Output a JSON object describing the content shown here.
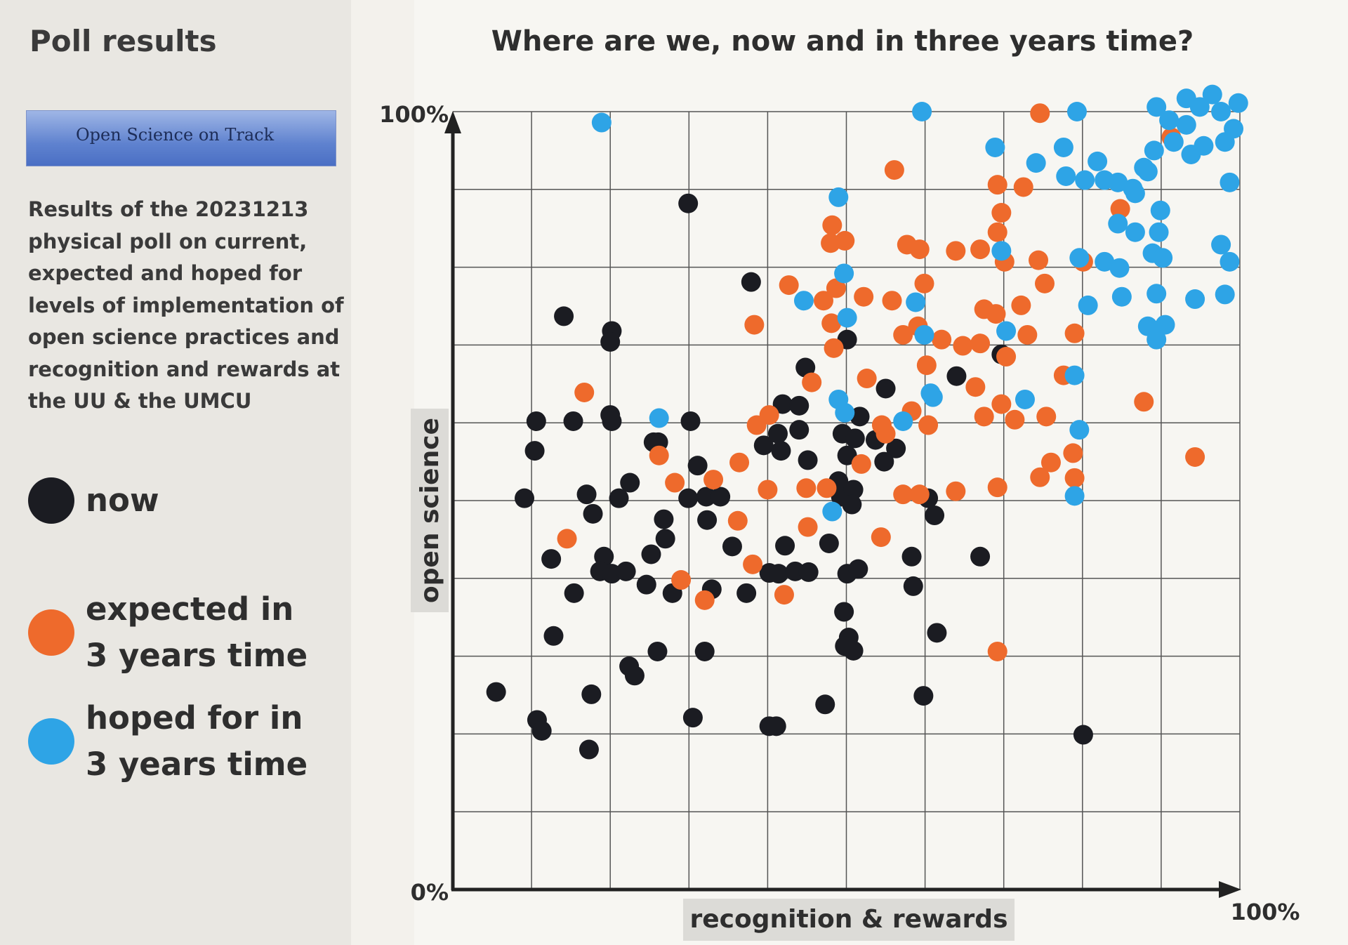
{
  "header": {
    "title": "Poll results",
    "logo_text": "Open Science on Track",
    "description": "Results of the 20231213 physical poll on current, expected and hoped for levels of implementation of open science practices and recognition and rewards at the UU & the UMCU"
  },
  "chart_data": {
    "type": "scatter",
    "title": "Where are we, now and in three years time?",
    "x_label": "recognition & rewards",
    "y_label": "open science",
    "xlim": [
      0,
      100
    ],
    "ylim": [
      0,
      100
    ],
    "xticks": [
      {
        "value": 100,
        "label": "100%"
      }
    ],
    "yticks": [
      {
        "value": 0,
        "label": "0%"
      },
      {
        "value": 100,
        "label": "100%"
      }
    ],
    "xgrid": [
      10,
      20,
      30,
      40,
      50,
      60,
      70,
      80,
      90,
      100
    ],
    "ygrid": [
      10,
      20,
      30,
      40,
      50,
      60,
      70,
      80,
      90,
      100
    ],
    "series": [
      {
        "name": "now",
        "color": "#1b1c22",
        "x": [
          5.5,
          10.6,
          10.4,
          9.1,
          12.5,
          15.4,
          12.8,
          10.7,
          11.3,
          17.6,
          17.3,
          14.1,
          20.2,
          20.0,
          15.3,
          20.0,
          20.2,
          17.0,
          17.8,
          21.1,
          22.5,
          19.2,
          18.7,
          20.2,
          22.0,
          24.6,
          25.2,
          26.8,
          27.0,
          26.1,
          25.5,
          27.9,
          30.2,
          29.9,
          31.1,
          32.2,
          34.0,
          32.3,
          32.9,
          35.5,
          37.3,
          32.0,
          26.0,
          22.4,
          23.1,
          30.5,
          40.2,
          41.1,
          29.9,
          37.9,
          42.2,
          40.2,
          41.4,
          43.5,
          45.2,
          47.8,
          47.3,
          44.8,
          41.9,
          44.0,
          39.5,
          41.3,
          44.0,
          41.7,
          45.1,
          49.0,
          49.3,
          50.9,
          50.7,
          50.1,
          49.5,
          51.1,
          50.1,
          53.7,
          55.0,
          56.3,
          54.8,
          50.1,
          51.5,
          49.7,
          50.3,
          49.8,
          50.9,
          58.3,
          58.5,
          61.5,
          59.8,
          60.4,
          61.2,
          64.0,
          67.0,
          80.1,
          69.7,
          51.7
        ],
        "values": [
          25.4,
          60.2,
          56.4,
          50.3,
          42.5,
          38.1,
          32.6,
          21.8,
          20.4,
          25.1,
          18.0,
          73.7,
          71.8,
          70.4,
          60.2,
          61.0,
          60.2,
          50.8,
          48.3,
          50.3,
          52.3,
          42.8,
          40.9,
          40.6,
          40.9,
          39.2,
          43.1,
          47.6,
          45.1,
          57.5,
          57.5,
          38.1,
          60.2,
          50.3,
          54.5,
          50.5,
          50.5,
          47.5,
          38.6,
          44.1,
          38.1,
          30.6,
          30.6,
          28.7,
          27.5,
          22.1,
          21.0,
          21.0,
          88.2,
          78.1,
          44.2,
          40.7,
          40.6,
          40.9,
          40.8,
          44.5,
          23.8,
          67.1,
          62.4,
          62.2,
          57.1,
          58.6,
          59.1,
          56.4,
          55.2,
          52.5,
          50.5,
          51.4,
          49.5,
          70.7,
          58.6,
          58.0,
          55.8,
          57.8,
          64.4,
          56.7,
          55.0,
          40.6,
          41.2,
          35.7,
          32.4,
          31.3,
          30.7,
          42.8,
          39.0,
          33.0,
          24.9,
          50.3,
          48.1,
          66.0,
          42.8,
          19.9,
          68.8,
          60.8
        ]
      },
      {
        "name": "expected in 3 years time",
        "color": "#ee6a2c",
        "x": [
          16.7,
          14.5,
          26.2,
          28.2,
          29.0,
          32.0,
          33.1,
          36.4,
          36.2,
          38.1,
          42.1,
          40.0,
          38.3,
          42.7,
          38.6,
          40.2,
          44.9,
          45.1,
          47.5,
          48.0,
          48.2,
          49.8,
          47.1,
          48.7,
          52.2,
          48.4,
          48.1,
          52.6,
          51.9,
          54.5,
          54.4,
          56.1,
          55.8,
          57.7,
          59.3,
          59.9,
          57.2,
          59.1,
          60.2,
          58.3,
          60.4,
          57.2,
          59.3,
          63.9,
          63.9,
          67.0,
          67.5,
          69.0,
          69.7,
          69.2,
          69.2,
          72.5,
          74.6,
          70.1,
          67.0,
          70.3,
          66.4,
          67.5,
          69.7,
          71.4,
          74.4,
          75.2,
          72.2,
          73.0,
          79.0,
          77.6,
          75.4,
          78.8,
          76.0,
          79.0,
          74.6,
          69.2,
          69.2,
          87.8,
          84.8,
          80.1,
          94.3,
          91.3,
          64.8,
          62.1,
          55.0,
          45.6
        ],
        "values": [
          63.9,
          45.1,
          55.8,
          52.3,
          39.8,
          37.2,
          52.7,
          54.9,
          47.4,
          41.8,
          37.9,
          51.4,
          72.6,
          77.7,
          59.7,
          61.0,
          51.6,
          46.6,
          51.6,
          83.1,
          85.4,
          83.4,
          75.7,
          77.3,
          76.2,
          69.6,
          72.8,
          65.7,
          54.7,
          59.7,
          45.3,
          92.5,
          75.7,
          82.9,
          82.3,
          77.9,
          71.3,
          72.4,
          67.4,
          61.5,
          59.7,
          50.8,
          50.8,
          51.2,
          82.1,
          82.3,
          74.6,
          74.0,
          87.0,
          84.5,
          90.6,
          90.3,
          99.8,
          80.7,
          70.2,
          68.5,
          64.6,
          60.8,
          62.4,
          60.4,
          80.9,
          77.9,
          75.1,
          71.3,
          71.5,
          66.1,
          60.8,
          56.1,
          54.9,
          52.9,
          53.0,
          51.7,
          30.6,
          62.7,
          87.5,
          80.7,
          55.6,
          96.7,
          69.9,
          70.7,
          58.6,
          65.2
        ]
      },
      {
        "name": "hoped for in 3 years time",
        "color": "#2ea4e6",
        "x": [
          18.9,
          26.2,
          49.0,
          49.7,
          50.1,
          44.6,
          49.0,
          49.8,
          48.2,
          59.6,
          58.8,
          59.9,
          60.7,
          57.2,
          61.0,
          68.9,
          69.7,
          70.3,
          72.7,
          74.1,
          77.6,
          79.3,
          77.9,
          80.3,
          81.9,
          82.8,
          84.5,
          79.6,
          80.7,
          82.8,
          84.7,
          84.5,
          86.7,
          86.4,
          88.3,
          89.1,
          89.4,
          91.0,
          91.6,
          93.2,
          94.9,
          96.5,
          97.6,
          99.8,
          99.2,
          98.1,
          95.4,
          93.8,
          89.9,
          88.9,
          89.7,
          88.3,
          90.5,
          89.4,
          94.3,
          98.1,
          98.7,
          97.6,
          98.7,
          79.0,
          79.0,
          89.4,
          93.2,
          87.8,
          86.7,
          90.2,
          85.0,
          79.6
        ],
        "values": [
          98.6,
          60.6,
          89.0,
          79.2,
          73.5,
          75.7,
          63.0,
          61.3,
          48.6,
          100,
          75.5,
          71.3,
          63.8,
          60.2,
          63.3,
          95.4,
          82.1,
          71.8,
          63.0,
          93.4,
          95.4,
          100,
          91.7,
          91.2,
          93.6,
          91.2,
          90.9,
          81.2,
          75.1,
          80.7,
          79.9,
          85.6,
          84.5,
          90.1,
          92.3,
          95.0,
          100.6,
          98.9,
          96.1,
          101.7,
          100.6,
          102.2,
          100,
          101.1,
          97.8,
          96.1,
          95.6,
          94.5,
          87.3,
          81.8,
          84.5,
          72.4,
          72.6,
          76.6,
          75.9,
          76.5,
          80.7,
          82.9,
          90.9,
          50.6,
          66.1,
          70.7,
          98.3,
          92.8,
          89.5,
          81.2,
          76.2,
          59.1
        ]
      }
    ]
  }
}
